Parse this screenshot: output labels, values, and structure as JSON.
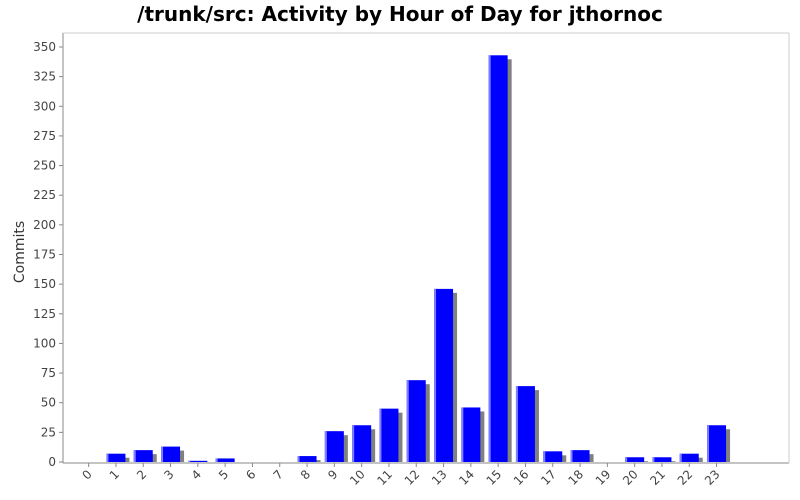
{
  "chart_data": {
    "type": "bar",
    "title": "/trunk/src: Activity by Hour of Day for jthornoc",
    "xlabel": "",
    "ylabel": "Commits",
    "categories": [
      "0",
      "1",
      "2",
      "3",
      "4",
      "5",
      "6",
      "7",
      "8",
      "9",
      "10",
      "11",
      "12",
      "13",
      "14",
      "15",
      "16",
      "17",
      "18",
      "19",
      "20",
      "21",
      "22",
      "23"
    ],
    "values": [
      0,
      7,
      10,
      13,
      1,
      3,
      0,
      0,
      5,
      26,
      31,
      45,
      69,
      146,
      46,
      343,
      64,
      9,
      10,
      0,
      4,
      4,
      7,
      31
    ],
    "ylim": [
      0,
      360
    ],
    "yticks": [
      0,
      25,
      50,
      75,
      100,
      125,
      150,
      175,
      200,
      225,
      250,
      275,
      300,
      325,
      350
    ],
    "grid": false,
    "legend": "none",
    "colors": {
      "bar": "#0000ff",
      "bar_shadow": "#808080",
      "bar_highlight": "#8080ff",
      "axis": "#888888"
    }
  }
}
